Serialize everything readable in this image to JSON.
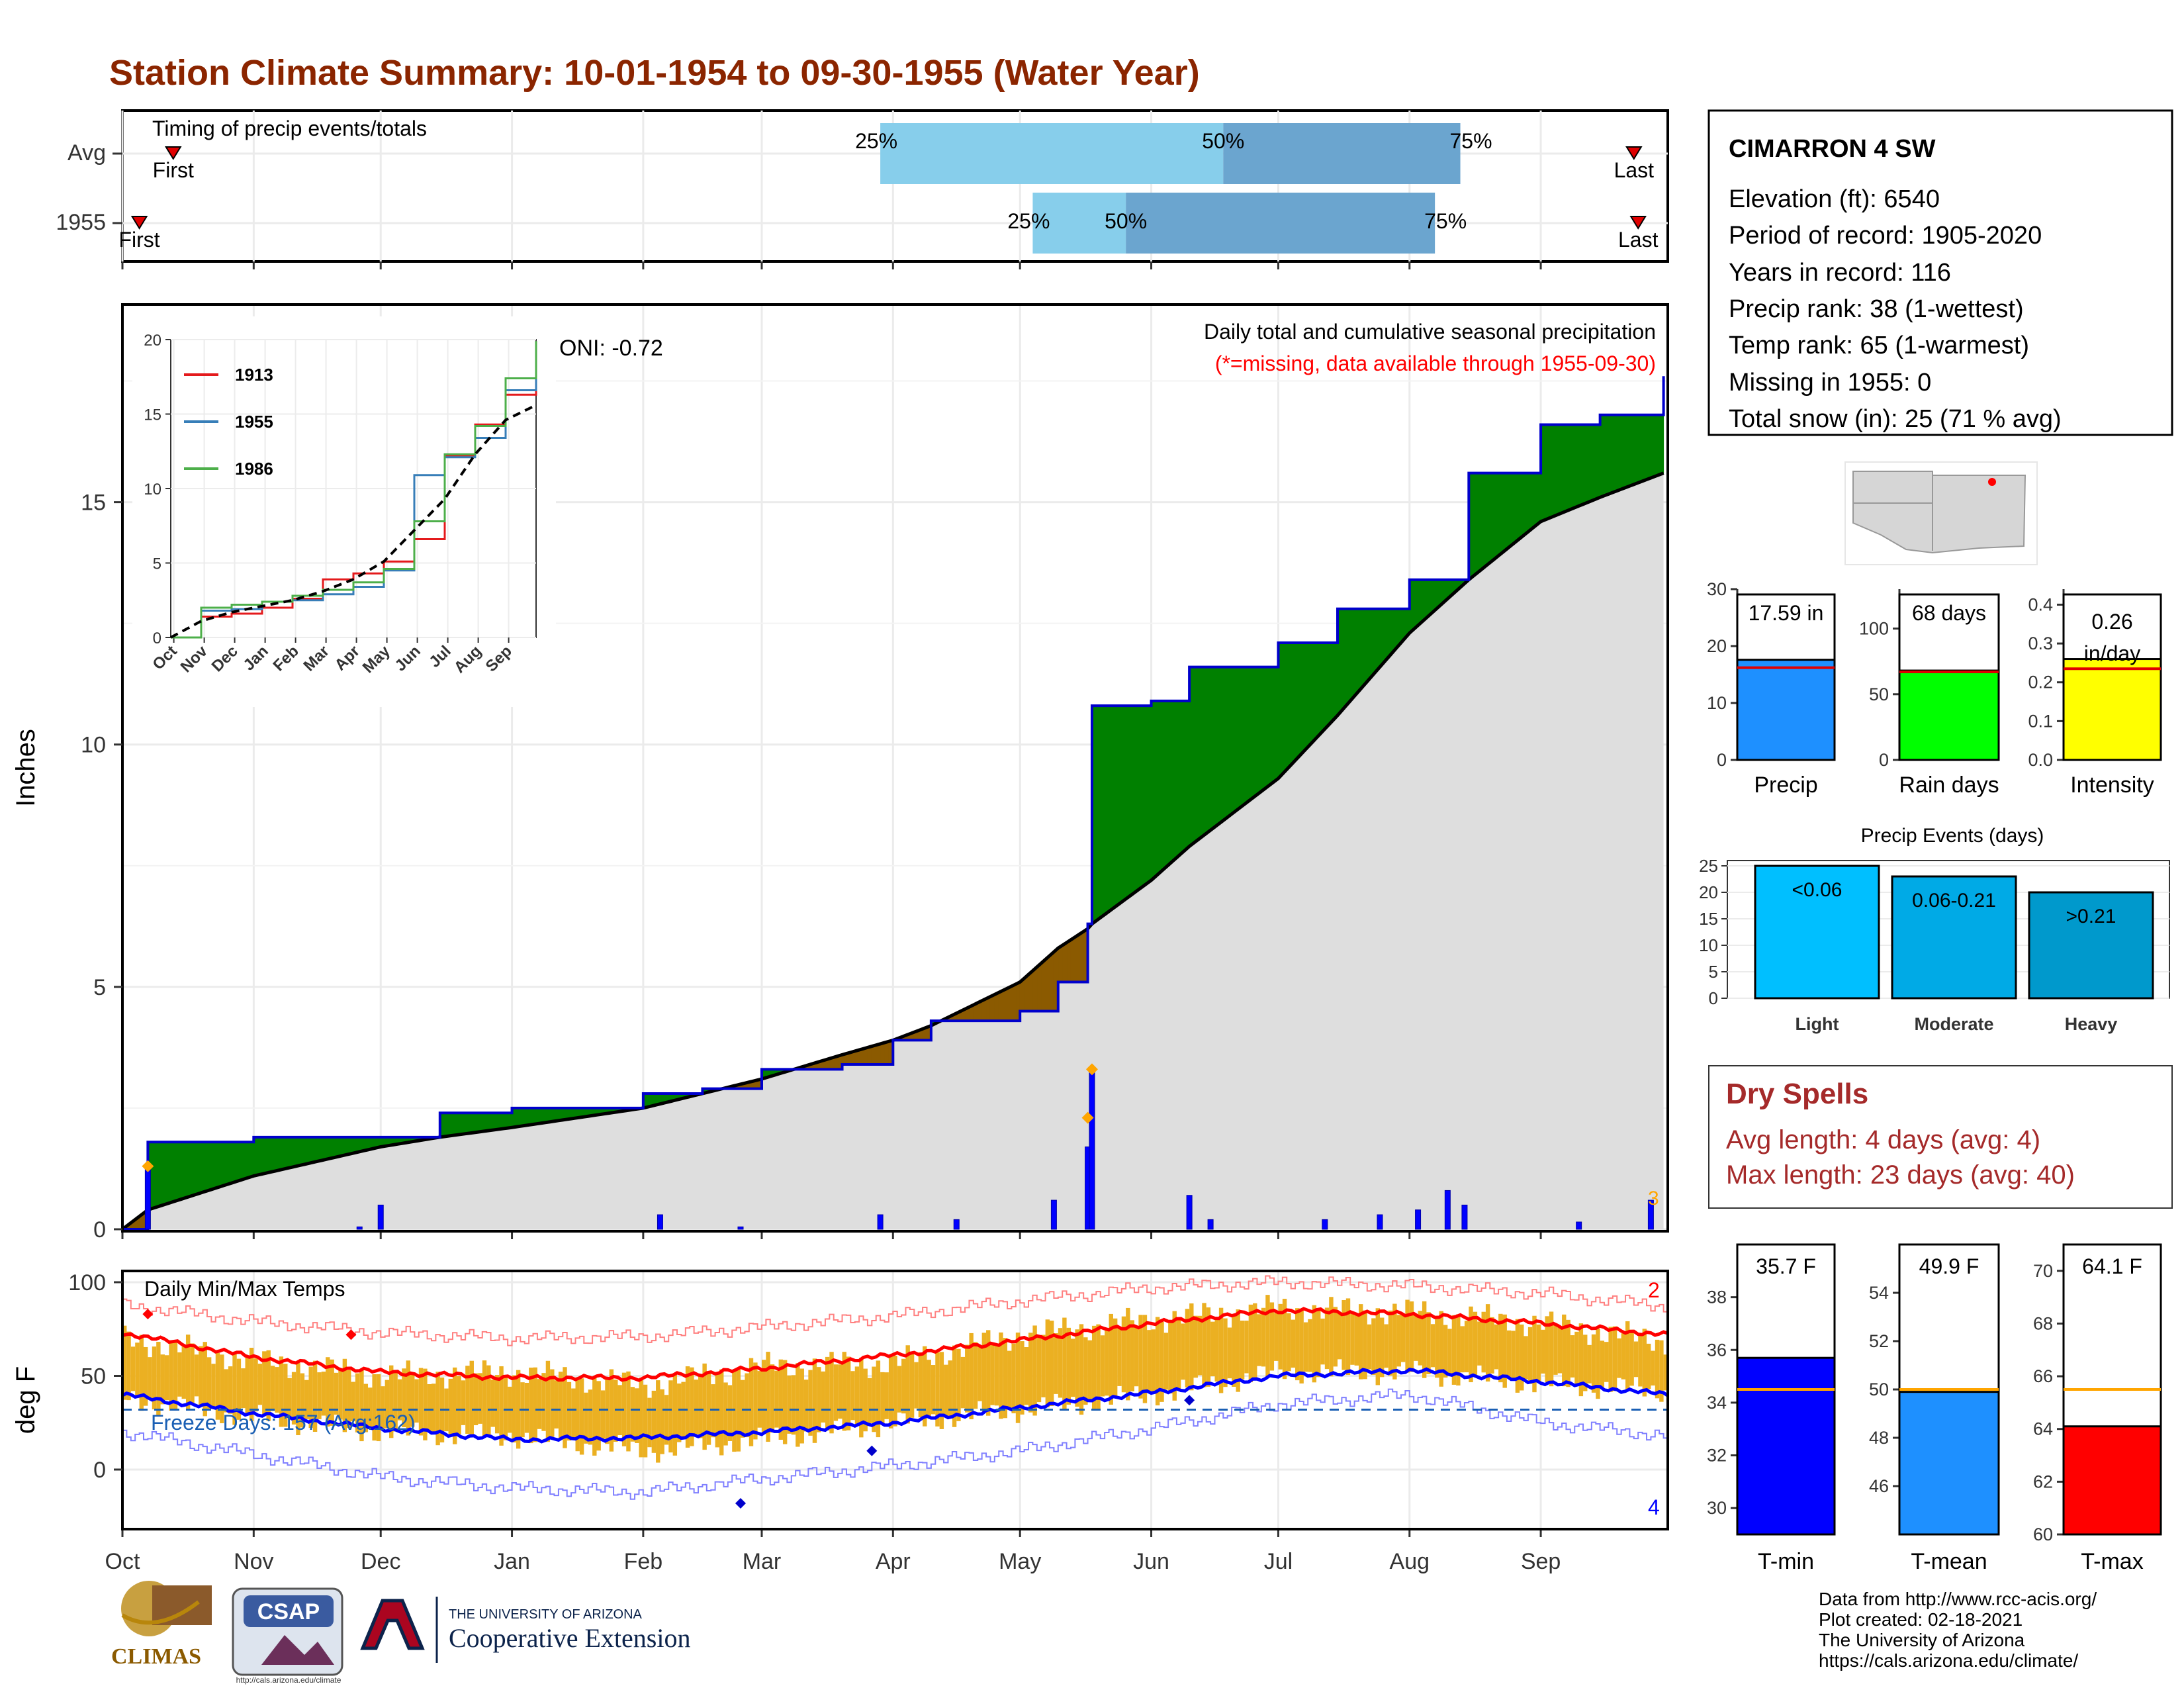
{
  "title": "Station Climate Summary: 10-01-1954 to 09-30-1955 (Water Year)",
  "timing": {
    "heading": "Timing of precip events/totals",
    "rows": [
      {
        "label": "Avg",
        "first_label": "First",
        "last_label": "Last",
        "q25": "25%",
        "q50": "50%",
        "q75": "75%",
        "first_day": 12,
        "last_day": 357,
        "p25_day": 179,
        "p50_day": 260,
        "p75_day": 316
      },
      {
        "label": "1955",
        "first_label": "First",
        "last_label": "Last",
        "q25": "25%",
        "q50": "50%",
        "q75": "75%",
        "first_day": 4,
        "last_day": 358,
        "p25_day": 215,
        "p50_day": 237,
        "p75_day": 310
      }
    ]
  },
  "station": {
    "name": "CIMARRON 4 SW",
    "lines": [
      "Elevation (ft): 6540",
      "Period of record: 1905-2020",
      "Years in record: 116",
      "Precip rank: 38 (1-wettest)",
      "Temp rank: 65 (1-warmest)",
      "Missing in 1955: 0",
      "Total snow (in): 25 (71 % avg)"
    ]
  },
  "precip_panel": {
    "title": "Daily total and cumulative seasonal precipitation",
    "subtitle": "(*=missing, data available through 1955-09-30)",
    "oni": "ONI: -0.72",
    "ylabel": "Inches",
    "corner_number": "3",
    "y_ticks": [
      "0",
      "5",
      "10",
      "15"
    ]
  },
  "inset": {
    "legend": [
      "1913",
      "1955",
      "1986"
    ],
    "y_ticks": [
      "0",
      "5",
      "10",
      "15",
      "20"
    ],
    "x_ticks": [
      "Oct",
      "Nov",
      "Dec",
      "Jan",
      "Feb",
      "Mar",
      "Apr",
      "May",
      "Jun",
      "Jul",
      "Aug",
      "Sep"
    ]
  },
  "temp_panel": {
    "title": "Daily Min/Max Temps",
    "freeze": "Freeze Days: 157 (Avg:162)",
    "ylabel": "deg F",
    "y_ticks": [
      "0",
      "50",
      "100"
    ],
    "count_high": "2",
    "count_low": "4"
  },
  "months": [
    "Oct",
    "Nov",
    "Dec",
    "Jan",
    "Feb",
    "Mar",
    "Apr",
    "May",
    "Jun",
    "Jul",
    "Aug",
    "Sep"
  ],
  "colors": {
    "title": "#8b2500",
    "above_avg": "#008000",
    "below_avg": "#8b5a00",
    "climo_fill": "#dedede",
    "obs_line": "#0000cc",
    "tmax_avg": "#ff0000",
    "tmin_avg": "#0000ff",
    "temp_bars": "#ebb022",
    "dry_spells": "#a52a2a",
    "accent_bar": "#1e90ff"
  },
  "summary_bars": {
    "precip": {
      "label": "Precip",
      "value_text": "17.59 in",
      "value": 17.59,
      "avg": 16.2,
      "ticks": [
        "0",
        "10",
        "20",
        "30"
      ],
      "max": 30
    },
    "rain_days": {
      "label": "Rain days",
      "value_text": "68 days",
      "value": 68,
      "avg": 67,
      "ticks": [
        "0",
        "50",
        "100"
      ],
      "max": 130
    },
    "intensity": {
      "label": "Intensity",
      "value_text": "0.26",
      "value_text2": "in/day",
      "value": 0.26,
      "avg": 0.235,
      "ticks": [
        "0.0",
        "0.1",
        "0.2",
        "0.3",
        "0.4"
      ],
      "max": 0.44
    }
  },
  "events": {
    "title": "Precip Events (days)",
    "bars": [
      {
        "category": "Light",
        "label": "<0.06",
        "value": 25,
        "color": "#00bfff"
      },
      {
        "category": "Moderate",
        "label": "0.06-0.21",
        "value": 23,
        "color": "#00aae6"
      },
      {
        "category": "Heavy",
        "label": ">0.21",
        "value": 20,
        "color": "#0099cc"
      }
    ],
    "ticks": [
      "0",
      "5",
      "10",
      "15",
      "20",
      "25"
    ]
  },
  "dry_spells": {
    "title": "Dry Spells",
    "avg": "Avg length: 4 days (avg: 4)",
    "max": "Max length: 23 days (avg: 40)"
  },
  "temp_bars": [
    {
      "label": "T-min",
      "value_text": "35.7 F",
      "value": 35.7,
      "avg": 34.5,
      "min": 29,
      "max": 40,
      "ticks": [
        "30",
        "32",
        "34",
        "36",
        "38"
      ],
      "color": "#0000ff"
    },
    {
      "label": "T-mean",
      "value_text": "49.9 F",
      "value": 49.9,
      "avg": 50.0,
      "min": 44,
      "max": 56,
      "ticks": [
        "46",
        "48",
        "50",
        "52",
        "54"
      ],
      "color": "#1e90ff"
    },
    {
      "label": "T-max",
      "value_text": "64.1 F",
      "value": 64.1,
      "avg": 65.5,
      "min": 60,
      "max": 71,
      "ticks": [
        "60",
        "62",
        "64",
        "66",
        "68",
        "70"
      ],
      "color": "#ff0000"
    }
  ],
  "credits": [
    "Data from http://www.rcc-acis.org/",
    "Plot created: 02-18-2021",
    "The University of Arizona",
    "https://cals.arizona.edu/climate/"
  ],
  "logos": {
    "climas": "CLIMAS",
    "csap": "CSAP",
    "csap_url": "http://cals.arizona.edu/climate",
    "ua_small": "THE UNIVERSITY OF ARIZONA",
    "ua_big": "Cooperative Extension"
  },
  "chart_data": [
    {
      "type": "area",
      "title": "Daily total and cumulative seasonal precipitation",
      "ylabel": "Inches",
      "ylim": [
        0,
        19
      ],
      "x": [
        "Oct 1",
        "Oct 7",
        "Nov 1",
        "Dec 1",
        "Dec 15",
        "Jan 1",
        "Feb 1",
        "Feb 15",
        "Mar 1",
        "Mar 20",
        "Apr 1",
        "Apr 10",
        "May 1",
        "May 10",
        "May 17",
        "May 18",
        "Jun 1",
        "Jun 10",
        "Jul 1",
        "Jul 15",
        "Aug 1",
        "Aug 15",
        "Sep 1",
        "Sep 15",
        "Sep 30"
      ],
      "series": [
        {
          "name": "1955 cumulative",
          "values": [
            0,
            1.8,
            1.9,
            1.9,
            2.4,
            2.5,
            2.8,
            2.9,
            3.3,
            3.4,
            3.9,
            4.3,
            4.5,
            5.1,
            6.3,
            10.8,
            10.9,
            11.6,
            12.1,
            12.8,
            13.4,
            15.6,
            16.6,
            16.8,
            17.6
          ]
        },
        {
          "name": "Average cumulative",
          "values": [
            0,
            0.4,
            1.1,
            1.7,
            1.9,
            2.1,
            2.5,
            2.8,
            3.1,
            3.6,
            3.9,
            4.2,
            5.1,
            5.8,
            6.2,
            6.3,
            7.2,
            7.9,
            9.3,
            10.6,
            12.3,
            13.4,
            14.6,
            15.1,
            15.6
          ]
        }
      ],
      "daily_precip": [
        {
          "date": "Oct 7",
          "value": 1.3
        },
        {
          "date": "Nov 26",
          "value": 0.05
        },
        {
          "date": "Dec 1",
          "value": 0.5
        },
        {
          "date": "Feb 5",
          "value": 0.3
        },
        {
          "date": "Feb 24",
          "value": 0.05
        },
        {
          "date": "Mar 29",
          "value": 0.3
        },
        {
          "date": "Apr 16",
          "value": 0.2
        },
        {
          "date": "May 9",
          "value": 0.6
        },
        {
          "date": "May 17",
          "value": 1.7
        },
        {
          "date": "May 18",
          "value": 3.3
        },
        {
          "date": "Jun 10",
          "value": 0.7
        },
        {
          "date": "Jun 15",
          "value": 0.2
        },
        {
          "date": "Jul 12",
          "value": 0.2
        },
        {
          "date": "Jul 25",
          "value": 0.3
        },
        {
          "date": "Aug 3",
          "value": 0.4
        },
        {
          "date": "Aug 10",
          "value": 0.8
        },
        {
          "date": "Aug 14",
          "value": 0.5
        },
        {
          "date": "Sep 10",
          "value": 0.15
        },
        {
          "date": "Sep 27",
          "value": 0.6
        }
      ]
    },
    {
      "type": "line",
      "title": "Inset cumulative precipitation",
      "ylim": [
        0,
        20
      ],
      "categories": [
        "Oct",
        "Nov",
        "Dec",
        "Jan",
        "Feb",
        "Mar",
        "Apr",
        "May",
        "Jun",
        "Jul",
        "Aug",
        "Sep",
        "Oct"
      ],
      "series": [
        {
          "name": "1913",
          "values": [
            0,
            1.4,
            1.6,
            2.0,
            2.6,
            3.9,
            4.3,
            5.1,
            6.6,
            12.2,
            14.3,
            16.3,
            17.9
          ]
        },
        {
          "name": "1955",
          "values": [
            0,
            1.8,
            1.9,
            2.4,
            2.5,
            2.9,
            3.4,
            4.5,
            10.9,
            12.1,
            13.4,
            16.6,
            17.6
          ]
        },
        {
          "name": "1986",
          "values": [
            0,
            2.0,
            2.2,
            2.4,
            2.8,
            3.2,
            3.7,
            4.6,
            7.8,
            12.3,
            14.2,
            17.4,
            19.9
          ]
        },
        {
          "name": "Average",
          "values": [
            0,
            1.1,
            1.7,
            2.1,
            2.5,
            3.1,
            3.9,
            5.1,
            7.2,
            9.3,
            12.3,
            14.6,
            15.6
          ]
        }
      ]
    },
    {
      "type": "line",
      "title": "Daily Min/Max Temps",
      "ylabel": "deg F",
      "ylim": [
        -30,
        105
      ],
      "categories": [
        "Oct",
        "Nov",
        "Dec",
        "Jan",
        "Feb",
        "Mar",
        "Apr",
        "May",
        "Jun",
        "Jul",
        "Aug",
        "Sep",
        "Oct"
      ],
      "series": [
        {
          "name": "Avg max",
          "values": [
            73,
            60,
            52,
            49,
            49,
            54,
            61,
            69,
            78,
            85,
            83,
            78,
            72
          ]
        },
        {
          "name": "Avg min",
          "values": [
            40,
            30,
            22,
            16,
            17,
            20,
            25,
            33,
            41,
            50,
            53,
            47,
            40
          ]
        },
        {
          "name": "Record max",
          "values": [
            88,
            79,
            73,
            70,
            71,
            76,
            82,
            90,
            97,
            100,
            98,
            94,
            87
          ]
        },
        {
          "name": "Record min",
          "values": [
            20,
            8,
            -4,
            -10,
            -12,
            -5,
            2,
            10,
            22,
            35,
            40,
            25,
            18
          ]
        },
        {
          "name": "Observed max",
          "values": [
            70,
            58,
            50,
            52,
            45,
            55,
            57,
            72,
            80,
            86,
            84,
            78,
            68
          ]
        },
        {
          "name": "Observed min",
          "values": [
            38,
            28,
            20,
            18,
            10,
            16,
            25,
            32,
            40,
            52,
            52,
            46,
            42
          ]
        }
      ],
      "freeze_line": 32
    }
  ]
}
